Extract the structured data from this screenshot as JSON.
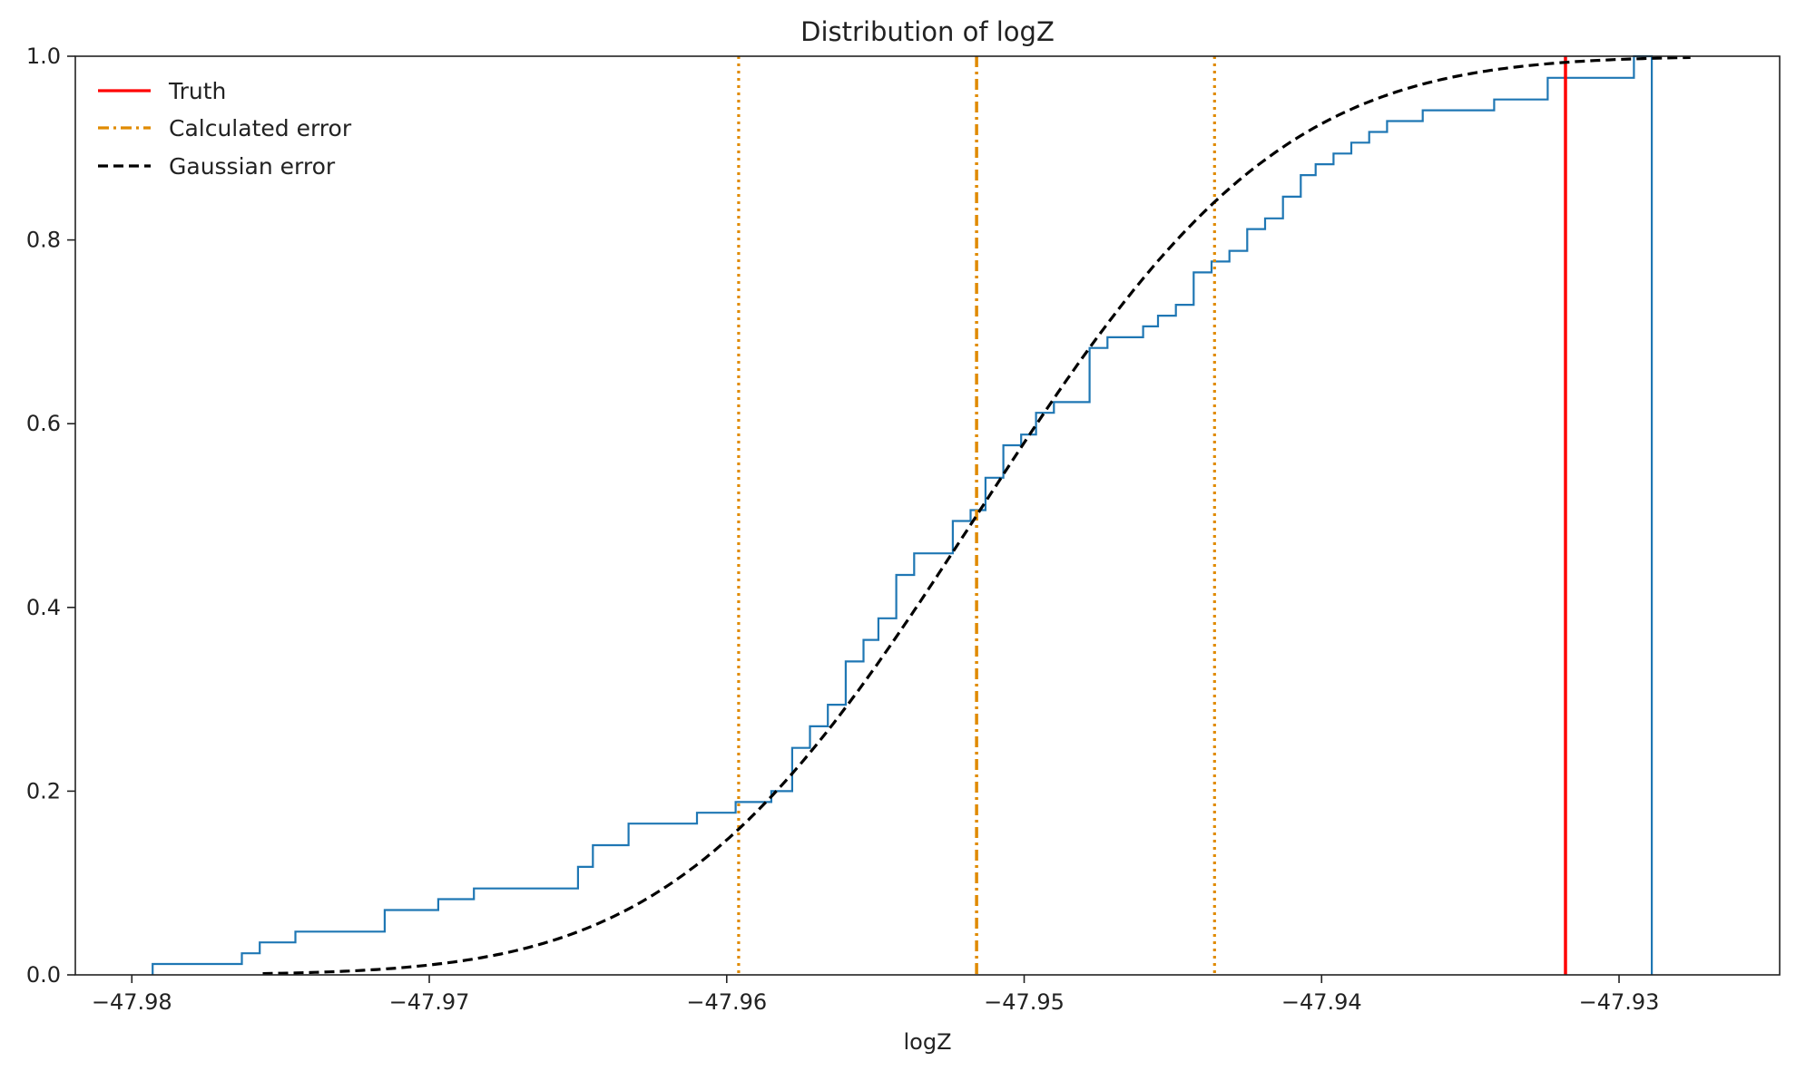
{
  "chart_data": {
    "type": "line",
    "title": "Distribution of logZ",
    "xlabel": "logZ",
    "ylabel": "",
    "xlim": [
      -47.9819,
      -47.9246
    ],
    "ylim": [
      0.0,
      1.0
    ],
    "grid": false,
    "legend_position": "top-left",
    "x_ticks": [
      -47.98,
      -47.97,
      -47.96,
      -47.95,
      -47.94,
      -47.93
    ],
    "x_tick_labels": [
      "−47.98",
      "−47.97",
      "−47.96",
      "−47.95",
      "−47.94",
      "−47.93"
    ],
    "y_ticks": [
      0.0,
      0.2,
      0.4,
      0.6,
      0.8,
      1.0
    ],
    "y_tick_labels": [
      "0.0",
      "0.2",
      "0.4",
      "0.6",
      "0.8",
      "1.0"
    ],
    "colors": {
      "ecdf": "#1f77b4",
      "truth": "#ff0000",
      "calculated": "#e08a00",
      "gaussian": "#000000"
    },
    "series": [
      {
        "kind": "ecdf_step",
        "points": [
          [
            -47.9793,
            0.0
          ],
          [
            -47.9793,
            0.0118
          ],
          [
            -47.9763,
            0.0118
          ],
          [
            -47.9763,
            0.0235
          ],
          [
            -47.9757,
            0.0235
          ],
          [
            -47.9757,
            0.0353
          ],
          [
            -47.9745,
            0.0353
          ],
          [
            -47.9745,
            0.0471
          ],
          [
            -47.9715,
            0.0471
          ],
          [
            -47.9715,
            0.0706
          ],
          [
            -47.9697,
            0.0706
          ],
          [
            -47.9697,
            0.0824
          ],
          [
            -47.9685,
            0.0824
          ],
          [
            -47.9685,
            0.0941
          ],
          [
            -47.965,
            0.0941
          ],
          [
            -47.965,
            0.1176
          ],
          [
            -47.9645,
            0.1176
          ],
          [
            -47.9645,
            0.1412
          ],
          [
            -47.9633,
            0.1412
          ],
          [
            -47.9633,
            0.1647
          ],
          [
            -47.961,
            0.1647
          ],
          [
            -47.961,
            0.1765
          ],
          [
            -47.9597,
            0.1765
          ],
          [
            -47.9597,
            0.1882
          ],
          [
            -47.9585,
            0.1882
          ],
          [
            -47.9585,
            0.2
          ],
          [
            -47.9578,
            0.2
          ],
          [
            -47.9578,
            0.2471
          ],
          [
            -47.9572,
            0.2471
          ],
          [
            -47.9572,
            0.2706
          ],
          [
            -47.9566,
            0.2706
          ],
          [
            -47.9566,
            0.2941
          ],
          [
            -47.956,
            0.2941
          ],
          [
            -47.956,
            0.3412
          ],
          [
            -47.9554,
            0.3412
          ],
          [
            -47.9554,
            0.3647
          ],
          [
            -47.9549,
            0.3647
          ],
          [
            -47.9549,
            0.3882
          ],
          [
            -47.9543,
            0.3882
          ],
          [
            -47.9543,
            0.4353
          ],
          [
            -47.9537,
            0.4353
          ],
          [
            -47.9537,
            0.4588
          ],
          [
            -47.9524,
            0.4588
          ],
          [
            -47.9524,
            0.4941
          ],
          [
            -47.9518,
            0.4941
          ],
          [
            -47.9518,
            0.5059
          ],
          [
            -47.9513,
            0.5059
          ],
          [
            -47.9513,
            0.5412
          ],
          [
            -47.9507,
            0.5412
          ],
          [
            -47.9507,
            0.5765
          ],
          [
            -47.9501,
            0.5765
          ],
          [
            -47.9501,
            0.5882
          ],
          [
            -47.9496,
            0.5882
          ],
          [
            -47.9496,
            0.6118
          ],
          [
            -47.949,
            0.6118
          ],
          [
            -47.949,
            0.6235
          ],
          [
            -47.9478,
            0.6235
          ],
          [
            -47.9478,
            0.6824
          ],
          [
            -47.9472,
            0.6824
          ],
          [
            -47.9472,
            0.6941
          ],
          [
            -47.946,
            0.6941
          ],
          [
            -47.946,
            0.7059
          ],
          [
            -47.9455,
            0.7059
          ],
          [
            -47.9455,
            0.7176
          ],
          [
            -47.9449,
            0.7176
          ],
          [
            -47.9449,
            0.7294
          ],
          [
            -47.9443,
            0.7294
          ],
          [
            -47.9443,
            0.7647
          ],
          [
            -47.9437,
            0.7647
          ],
          [
            -47.9437,
            0.7765
          ],
          [
            -47.9431,
            0.7765
          ],
          [
            -47.9431,
            0.7882
          ],
          [
            -47.9425,
            0.7882
          ],
          [
            -47.9425,
            0.8118
          ],
          [
            -47.9419,
            0.8118
          ],
          [
            -47.9419,
            0.8235
          ],
          [
            -47.9413,
            0.8235
          ],
          [
            -47.9413,
            0.8471
          ],
          [
            -47.9407,
            0.8471
          ],
          [
            -47.9407,
            0.8706
          ],
          [
            -47.9402,
            0.8706
          ],
          [
            -47.9402,
            0.8824
          ],
          [
            -47.9396,
            0.8824
          ],
          [
            -47.9396,
            0.8941
          ],
          [
            -47.939,
            0.8941
          ],
          [
            -47.939,
            0.9059
          ],
          [
            -47.9384,
            0.9059
          ],
          [
            -47.9384,
            0.9176
          ],
          [
            -47.9378,
            0.9176
          ],
          [
            -47.9378,
            0.9294
          ],
          [
            -47.9366,
            0.9294
          ],
          [
            -47.9366,
            0.9412
          ],
          [
            -47.9342,
            0.9412
          ],
          [
            -47.9342,
            0.9529
          ],
          [
            -47.9324,
            0.9529
          ],
          [
            -47.9324,
            0.9765
          ],
          [
            -47.9295,
            0.9765
          ],
          [
            -47.9295,
            1.0
          ],
          [
            -47.9289,
            1.0
          ],
          [
            -47.9289,
            0.0
          ]
        ]
      },
      {
        "name": "Truth",
        "kind": "vline",
        "x": -47.9318,
        "style": "solid"
      },
      {
        "name": "Calculated error",
        "kind": "vline",
        "x": -47.9516,
        "style": "dashdot"
      },
      {
        "kind": "vline",
        "x": -47.9596,
        "style": "dotted"
      },
      {
        "kind": "vline",
        "x": -47.9436,
        "style": "dotted"
      },
      {
        "name": "Gaussian error",
        "kind": "normal_cdf",
        "mean": -47.9516,
        "sd": 0.008,
        "x_range": [
          -47.9756,
          -47.9276
        ],
        "style": "dashed"
      }
    ]
  }
}
